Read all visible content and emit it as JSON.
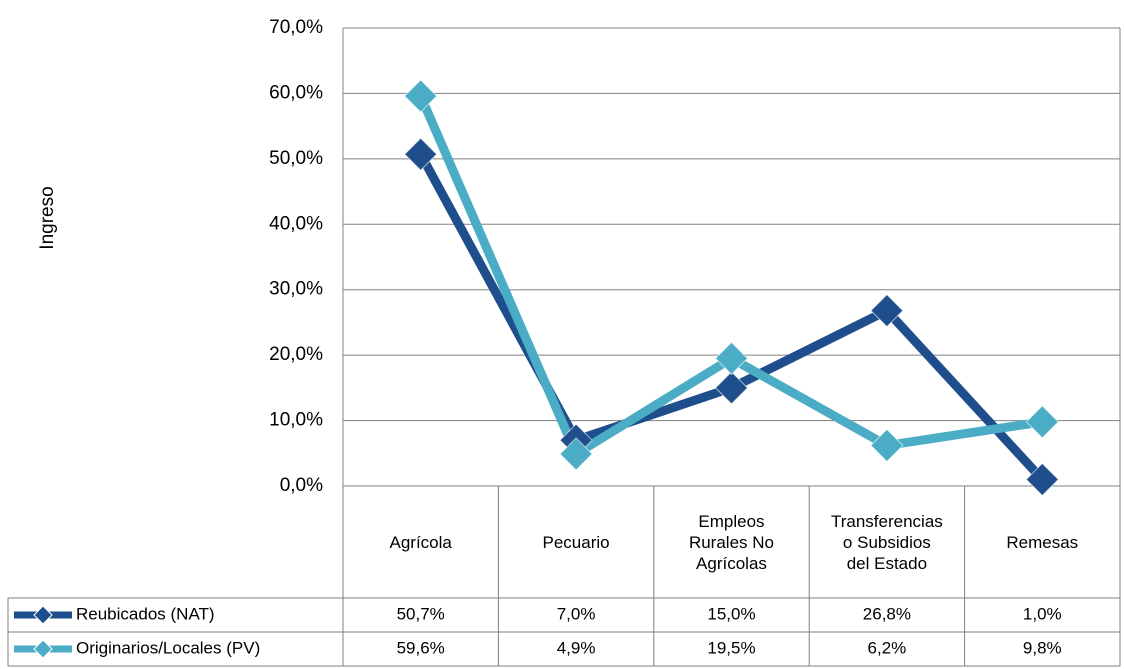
{
  "chart_data": {
    "type": "line",
    "y_label": "Ingreso",
    "categories": [
      "Agrícola",
      "Pecuario",
      "Empleos Rurales No Agrícolas",
      "Transferencias o Subsidios del Estado",
      "Remesas"
    ],
    "series": [
      {
        "name": "Reubicados (NAT)",
        "color": "#1f4e8c",
        "values": [
          50.7,
          7.0,
          15.0,
          26.8,
          1.0
        ],
        "value_labels": [
          "50,7%",
          "7,0%",
          "15,0%",
          "26,8%",
          "1,0%"
        ]
      },
      {
        "name": "Originarios/Locales (PV)",
        "color": "#4bacc6",
        "values": [
          59.6,
          4.9,
          19.5,
          6.2,
          9.8
        ],
        "value_labels": [
          "59,6%",
          "4,9%",
          "19,5%",
          "6,2%",
          "9,8%"
        ]
      }
    ],
    "ylim": [
      0,
      70
    ],
    "yticks": [
      {
        "value": 0,
        "label": "0,0%"
      },
      {
        "value": 10,
        "label": "10,0%"
      },
      {
        "value": 20,
        "label": "20,0%"
      },
      {
        "value": 30,
        "label": "30,0%"
      },
      {
        "value": 40,
        "label": "40,0%"
      },
      {
        "value": 50,
        "label": "50,0%"
      },
      {
        "value": 60,
        "label": "60,0%"
      },
      {
        "value": 70,
        "label": "70,0%"
      }
    ],
    "grid": true
  }
}
